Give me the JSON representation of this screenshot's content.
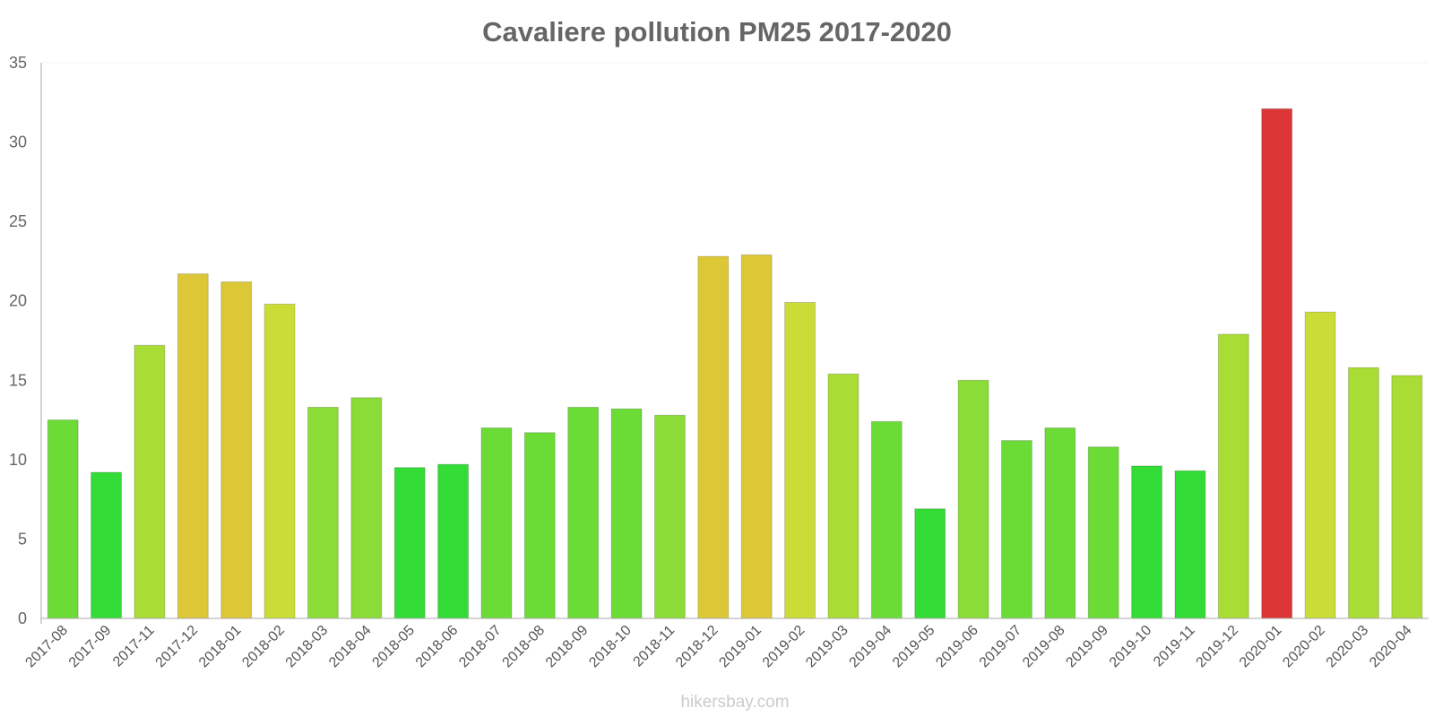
{
  "chart_data": {
    "type": "bar",
    "title": "Cavaliere pollution PM25 2017-2020",
    "xlabel": "",
    "ylabel": "",
    "ylim": [
      0,
      35
    ],
    "yticks": [
      0,
      5,
      10,
      15,
      20,
      25,
      30,
      35
    ],
    "categories": [
      "2017-08",
      "2017-09",
      "2017-11",
      "2017-12",
      "2018-01",
      "2018-02",
      "2018-03",
      "2018-04",
      "2018-05",
      "2018-06",
      "2018-07",
      "2018-08",
      "2018-09",
      "2018-10",
      "2018-11",
      "2018-12",
      "2019-01",
      "2019-02",
      "2019-03",
      "2019-04",
      "2019-05",
      "2019-06",
      "2019-07",
      "2019-08",
      "2019-09",
      "2019-10",
      "2019-11",
      "2019-12",
      "2020-01",
      "2020-02",
      "2020-03",
      "2020-04"
    ],
    "values": [
      12.5,
      9.2,
      17.2,
      21.7,
      21.2,
      19.8,
      13.3,
      13.9,
      9.5,
      9.7,
      12.0,
      11.7,
      13.3,
      13.2,
      12.8,
      22.8,
      22.9,
      19.9,
      15.4,
      12.4,
      6.9,
      15.0,
      11.2,
      12.0,
      10.8,
      9.6,
      9.3,
      17.9,
      32.1,
      19.3,
      15.8,
      15.3
    ],
    "colors": [
      "#6bdc36",
      "#33dc36",
      "#aadc36",
      "#dcc836",
      "#dcc836",
      "#ccdc36",
      "#8bdc36",
      "#8bdc36",
      "#33dc36",
      "#33dc36",
      "#6bdc36",
      "#6bdc36",
      "#6bdc36",
      "#6bdc36",
      "#8bdc36",
      "#dcc836",
      "#dcc836",
      "#ccdc36",
      "#aadc36",
      "#6bdc36",
      "#33dc36",
      "#8bdc36",
      "#6bdc36",
      "#6bdc36",
      "#6bdc36",
      "#33dc36",
      "#33dc36",
      "#aadc36",
      "#dc3636",
      "#ccdc36",
      "#aadc36",
      "#aadc36"
    ]
  },
  "watermark": "hikersbay.com"
}
